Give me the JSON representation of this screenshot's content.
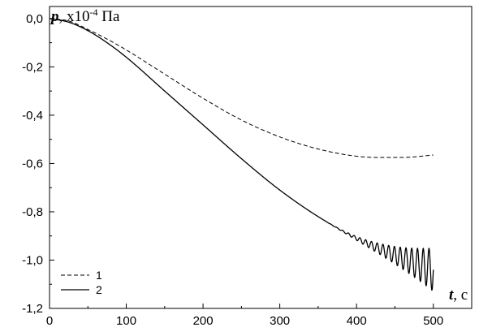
{
  "chart_data": {
    "type": "line",
    "xlabel": {
      "var": "t",
      "rest": ", с"
    },
    "ylabel": {
      "var": "p",
      "rest": ", x10",
      "exp": "-4",
      "unit": " Па"
    },
    "xlim": [
      0,
      550
    ],
    "ylim": [
      -1.2,
      0.05
    ],
    "xticks": [
      0,
      100,
      200,
      300,
      400,
      500
    ],
    "xtick_labels": [
      "0",
      "100",
      "200",
      "300",
      "400",
      "500"
    ],
    "yticks": [
      0.0,
      -0.2,
      -0.4,
      -0.6,
      -0.8,
      -1.0,
      -1.2
    ],
    "ytick_labels": [
      "0,0",
      "-0,2",
      "-0,4",
      "-0,6",
      "-0,8",
      "-1,0",
      "-1,2"
    ],
    "grid": false,
    "legend": "bottom-left",
    "series": [
      {
        "name": "1",
        "style": "dashed",
        "color": "#000000",
        "x": [
          0,
          25,
          50,
          75,
          100,
          150,
          200,
          250,
          300,
          350,
          400,
          430,
          460,
          500
        ],
        "y": [
          0.0,
          -0.01,
          -0.045,
          -0.085,
          -0.13,
          -0.23,
          -0.33,
          -0.42,
          -0.49,
          -0.54,
          -0.57,
          -0.575,
          -0.575,
          -0.565
        ]
      },
      {
        "name": "2",
        "style": "solid",
        "color": "#000000",
        "x": [
          0,
          25,
          50,
          75,
          100,
          150,
          200,
          250,
          300,
          350,
          400,
          450,
          500
        ],
        "y": [
          0.0,
          -0.015,
          -0.05,
          -0.1,
          -0.16,
          -0.3,
          -0.44,
          -0.58,
          -0.71,
          -0.82,
          -0.91,
          -0.98,
          -1.04
        ],
        "oscillation": {
          "start_x": 350,
          "end_x": 500,
          "period": 7.5,
          "max_amplitude": 0.09
        }
      }
    ]
  }
}
